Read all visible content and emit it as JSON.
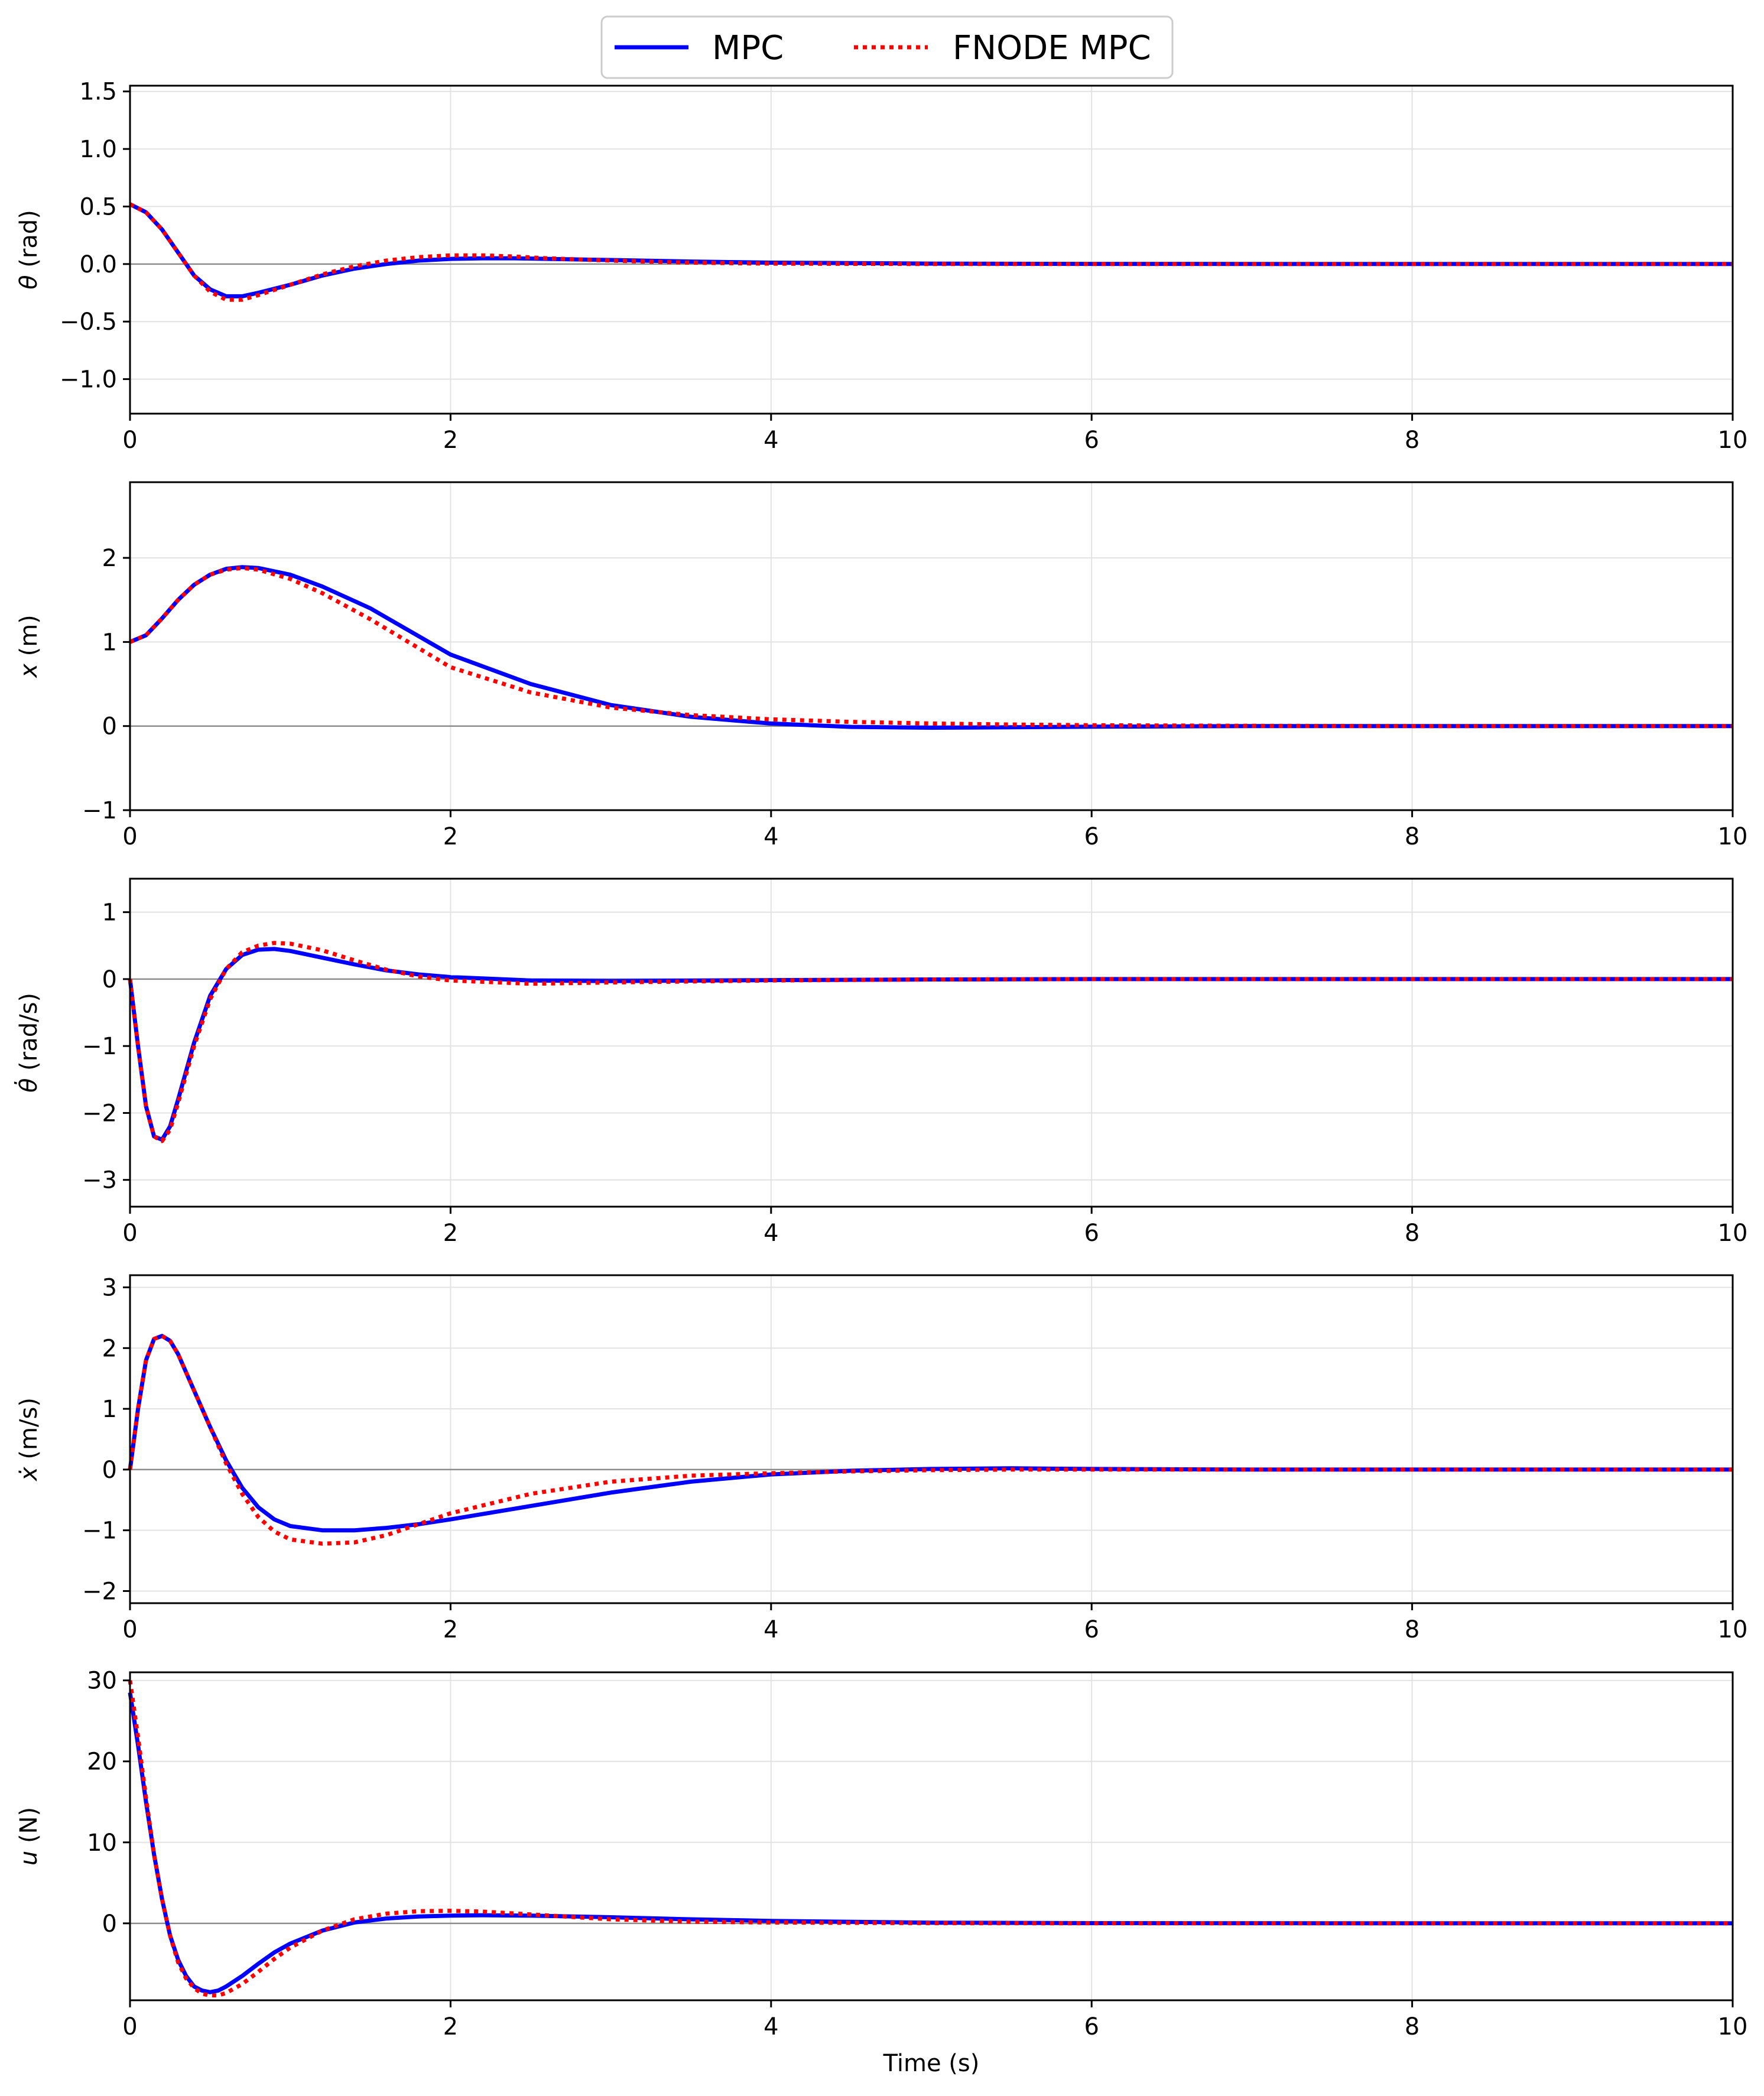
{
  "legend": {
    "entries": [
      {
        "label": "MPC",
        "color": "#0000ff",
        "style": "solid"
      },
      {
        "label": "FNODE MPC",
        "color": "#ff0000",
        "style": "dotted"
      }
    ],
    "placement": "top-center"
  },
  "xlabel": "Time (s)",
  "chart_data": [
    {
      "type": "line",
      "ylabel_symbol": "θ",
      "ylabel_dot": false,
      "ylabel_unit": " (rad)",
      "xlim": [
        0,
        10
      ],
      "ylim": [
        -1.3,
        1.55
      ],
      "xticks": [
        0,
        2,
        4,
        6,
        8,
        10
      ],
      "yticks": [
        -1.0,
        -0.5,
        0.0,
        0.5,
        1.0,
        1.5
      ],
      "ytick_labels": [
        "−1.0",
        "−0.5",
        "0.0",
        "0.5",
        "1.0",
        "1.5"
      ],
      "grid": true,
      "series": [
        {
          "name": "MPC",
          "color": "#0000ff",
          "x": [
            0,
            0.1,
            0.2,
            0.3,
            0.4,
            0.5,
            0.6,
            0.7,
            0.8,
            1.0,
            1.2,
            1.4,
            1.6,
            1.8,
            2.0,
            2.2,
            2.4,
            2.6,
            3.0,
            3.5,
            4.0,
            5.0,
            6.0,
            8.0,
            10.0
          ],
          "y": [
            0.52,
            0.45,
            0.3,
            0.1,
            -0.1,
            -0.22,
            -0.28,
            -0.28,
            -0.25,
            -0.18,
            -0.1,
            -0.04,
            0.0,
            0.03,
            0.045,
            0.05,
            0.05,
            0.045,
            0.035,
            0.022,
            0.012,
            0.004,
            0.001,
            0.0,
            0.0
          ]
        },
        {
          "name": "FNODE MPC",
          "color": "#ff0000",
          "x": [
            0,
            0.1,
            0.2,
            0.3,
            0.4,
            0.5,
            0.6,
            0.7,
            0.8,
            1.0,
            1.2,
            1.4,
            1.6,
            1.8,
            2.0,
            2.2,
            2.4,
            2.6,
            3.0,
            3.5,
            4.0,
            5.0,
            6.0,
            8.0,
            10.0
          ],
          "y": [
            0.52,
            0.45,
            0.3,
            0.1,
            -0.1,
            -0.24,
            -0.31,
            -0.31,
            -0.27,
            -0.18,
            -0.09,
            -0.02,
            0.03,
            0.06,
            0.075,
            0.075,
            0.065,
            0.05,
            0.03,
            0.012,
            0.004,
            0.0,
            0.0,
            0.0,
            0.0
          ]
        }
      ]
    },
    {
      "type": "line",
      "ylabel_symbol": "x",
      "ylabel_dot": false,
      "ylabel_unit": " (m)",
      "xlim": [
        0,
        10
      ],
      "ylim": [
        -1.0,
        2.9
      ],
      "xticks": [
        0,
        2,
        4,
        6,
        8,
        10
      ],
      "yticks": [
        -1,
        0,
        1,
        2
      ],
      "ytick_labels": [
        "−1",
        "0",
        "1",
        "2"
      ],
      "grid": true,
      "series": [
        {
          "name": "MPC",
          "color": "#0000ff",
          "x": [
            0,
            0.1,
            0.2,
            0.3,
            0.4,
            0.5,
            0.6,
            0.7,
            0.8,
            1.0,
            1.2,
            1.5,
            2.0,
            2.5,
            3.0,
            3.5,
            4.0,
            4.5,
            5.0,
            5.5,
            6.0,
            7.0,
            8.0,
            10.0
          ],
          "y": [
            1.0,
            1.08,
            1.28,
            1.5,
            1.68,
            1.8,
            1.87,
            1.89,
            1.88,
            1.8,
            1.66,
            1.4,
            0.85,
            0.5,
            0.25,
            0.11,
            0.03,
            -0.01,
            -0.02,
            -0.015,
            -0.008,
            0.0,
            0.0,
            0.0
          ]
        },
        {
          "name": "FNODE MPC",
          "color": "#ff0000",
          "x": [
            0,
            0.1,
            0.2,
            0.3,
            0.4,
            0.5,
            0.6,
            0.7,
            0.8,
            1.0,
            1.2,
            1.5,
            2.0,
            2.5,
            3.0,
            3.5,
            4.0,
            4.5,
            5.0,
            5.5,
            6.0,
            7.0,
            8.0,
            10.0
          ],
          "y": [
            1.0,
            1.08,
            1.28,
            1.5,
            1.68,
            1.8,
            1.86,
            1.88,
            1.86,
            1.75,
            1.58,
            1.27,
            0.7,
            0.4,
            0.22,
            0.13,
            0.08,
            0.05,
            0.03,
            0.018,
            0.01,
            0.003,
            0.0,
            0.0
          ]
        }
      ]
    },
    {
      "type": "line",
      "ylabel_symbol": "θ",
      "ylabel_dot": true,
      "ylabel_unit": " (rad/s)",
      "xlim": [
        0,
        10
      ],
      "ylim": [
        -3.4,
        1.5
      ],
      "xticks": [
        0,
        2,
        4,
        6,
        8,
        10
      ],
      "yticks": [
        -3,
        -2,
        -1,
        0,
        1
      ],
      "ytick_labels": [
        "−3",
        "−2",
        "−1",
        "0",
        "1"
      ],
      "grid": true,
      "series": [
        {
          "name": "MPC",
          "color": "#0000ff",
          "x": [
            0,
            0.05,
            0.1,
            0.15,
            0.2,
            0.25,
            0.3,
            0.4,
            0.5,
            0.6,
            0.7,
            0.8,
            0.9,
            1.0,
            1.2,
            1.4,
            1.6,
            1.8,
            2.0,
            2.5,
            3.0,
            4.0,
            5.0,
            6.0,
            8.0,
            10.0
          ],
          "y": [
            0,
            -1.0,
            -1.9,
            -2.35,
            -2.4,
            -2.2,
            -1.8,
            -0.95,
            -0.25,
            0.15,
            0.36,
            0.44,
            0.45,
            0.42,
            0.32,
            0.22,
            0.13,
            0.07,
            0.03,
            -0.02,
            -0.03,
            -0.015,
            -0.005,
            0.0,
            0.0,
            0.0
          ]
        },
        {
          "name": "FNODE MPC",
          "color": "#ff0000",
          "x": [
            0,
            0.05,
            0.1,
            0.15,
            0.2,
            0.25,
            0.3,
            0.4,
            0.5,
            0.6,
            0.7,
            0.8,
            0.9,
            1.0,
            1.2,
            1.4,
            1.6,
            1.8,
            2.0,
            2.5,
            3.0,
            4.0,
            5.0,
            6.0,
            8.0,
            10.0
          ],
          "y": [
            0,
            -1.0,
            -1.9,
            -2.35,
            -2.42,
            -2.25,
            -1.85,
            -1.0,
            -0.3,
            0.15,
            0.4,
            0.5,
            0.54,
            0.53,
            0.43,
            0.28,
            0.14,
            0.04,
            -0.02,
            -0.07,
            -0.05,
            -0.02,
            -0.005,
            0.0,
            0.0,
            0.0
          ]
        }
      ]
    },
    {
      "type": "line",
      "ylabel_symbol": "x",
      "ylabel_dot": true,
      "ylabel_unit": " (m/s)",
      "xlim": [
        0,
        10
      ],
      "ylim": [
        -2.2,
        3.2
      ],
      "xticks": [
        0,
        2,
        4,
        6,
        8,
        10
      ],
      "yticks": [
        -2,
        -1,
        0,
        1,
        2,
        3
      ],
      "ytick_labels": [
        "−2",
        "−1",
        "0",
        "1",
        "2",
        "3"
      ],
      "grid": true,
      "series": [
        {
          "name": "MPC",
          "color": "#0000ff",
          "x": [
            0,
            0.05,
            0.1,
            0.15,
            0.2,
            0.25,
            0.3,
            0.4,
            0.5,
            0.6,
            0.7,
            0.8,
            0.9,
            1.0,
            1.2,
            1.4,
            1.6,
            1.8,
            2.0,
            2.5,
            3.0,
            3.5,
            4.0,
            4.5,
            5.0,
            5.5,
            6.0,
            7.0,
            8.0,
            10.0
          ],
          "y": [
            0,
            1.0,
            1.8,
            2.15,
            2.2,
            2.12,
            1.9,
            1.3,
            0.7,
            0.15,
            -0.3,
            -0.62,
            -0.82,
            -0.93,
            -1.0,
            -1.0,
            -0.96,
            -0.9,
            -0.82,
            -0.6,
            -0.38,
            -0.2,
            -0.08,
            -0.02,
            0.01,
            0.02,
            0.01,
            0.0,
            0.0,
            0.0
          ]
        },
        {
          "name": "FNODE MPC",
          "color": "#ff0000",
          "x": [
            0,
            0.05,
            0.1,
            0.15,
            0.2,
            0.25,
            0.3,
            0.4,
            0.5,
            0.6,
            0.7,
            0.8,
            0.9,
            1.0,
            1.2,
            1.4,
            1.6,
            1.8,
            2.0,
            2.5,
            3.0,
            3.5,
            4.0,
            4.5,
            5.0,
            5.5,
            6.0,
            7.0,
            8.0,
            10.0
          ],
          "y": [
            0,
            1.0,
            1.8,
            2.15,
            2.2,
            2.12,
            1.9,
            1.3,
            0.7,
            0.1,
            -0.4,
            -0.78,
            -1.02,
            -1.15,
            -1.22,
            -1.2,
            -1.08,
            -0.9,
            -0.72,
            -0.4,
            -0.2,
            -0.1,
            -0.06,
            -0.03,
            -0.01,
            0.0,
            0.0,
            0.0,
            0.0,
            0.0
          ]
        }
      ]
    },
    {
      "type": "line",
      "ylabel_symbol": "u",
      "ylabel_dot": false,
      "ylabel_unit": " (N)",
      "xlim": [
        0,
        10
      ],
      "ylim": [
        -9.5,
        31
      ],
      "xticks": [
        0,
        2,
        4,
        6,
        8,
        10
      ],
      "yticks": [
        0,
        10,
        20,
        30
      ],
      "ytick_labels": [
        "0",
        "10",
        "20",
        "30"
      ],
      "grid": true,
      "series": [
        {
          "name": "MPC",
          "color": "#0000ff",
          "x": [
            0,
            0.05,
            0.1,
            0.15,
            0.2,
            0.25,
            0.3,
            0.35,
            0.4,
            0.45,
            0.5,
            0.55,
            0.6,
            0.7,
            0.8,
            0.9,
            1.0,
            1.2,
            1.4,
            1.6,
            1.8,
            2.0,
            2.2,
            2.5,
            3.0,
            3.5,
            4.0,
            5.0,
            6.0,
            8.0,
            10.0
          ],
          "y": [
            28.5,
            22,
            15,
            8.5,
            3,
            -1.5,
            -4.5,
            -6.5,
            -7.8,
            -8.3,
            -8.5,
            -8.3,
            -7.8,
            -6.5,
            -5.0,
            -3.6,
            -2.5,
            -0.9,
            0.1,
            0.6,
            0.85,
            0.95,
            1.0,
            0.95,
            0.75,
            0.5,
            0.3,
            0.08,
            0.02,
            0.0,
            0.0
          ]
        },
        {
          "name": "FNODE MPC",
          "color": "#ff0000",
          "x": [
            0,
            0.05,
            0.1,
            0.15,
            0.2,
            0.25,
            0.3,
            0.35,
            0.4,
            0.45,
            0.5,
            0.55,
            0.6,
            0.7,
            0.8,
            0.9,
            1.0,
            1.2,
            1.4,
            1.6,
            1.8,
            2.0,
            2.2,
            2.5,
            3.0,
            3.5,
            4.0,
            5.0,
            6.0,
            8.0,
            10.0
          ],
          "y": [
            30,
            23,
            15.5,
            8.5,
            3,
            -1.5,
            -4.8,
            -6.8,
            -8.0,
            -8.7,
            -8.9,
            -8.9,
            -8.6,
            -7.5,
            -6.0,
            -4.4,
            -3.0,
            -0.9,
            0.5,
            1.2,
            1.5,
            1.55,
            1.45,
            1.1,
            0.5,
            0.2,
            0.1,
            0.02,
            0.0,
            0.0,
            0.0
          ]
        }
      ]
    }
  ]
}
